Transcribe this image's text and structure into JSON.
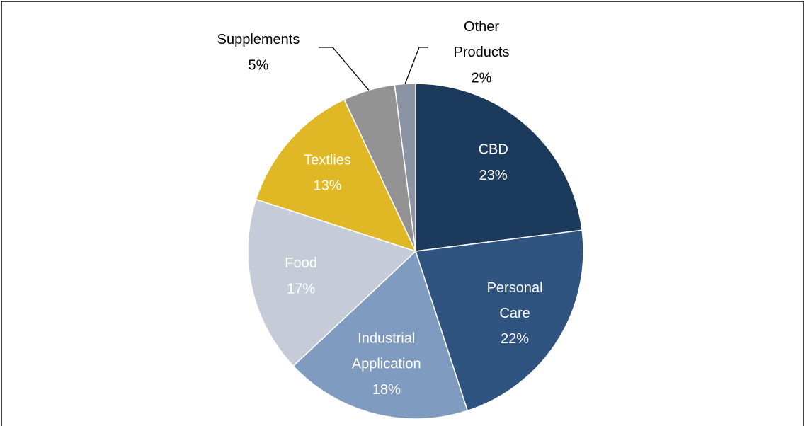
{
  "chart_data": {
    "type": "pie",
    "categories": [
      "CBD",
      "Personal Care",
      "Industrial Application",
      "Food",
      "Textlies",
      "Supplements",
      "Other Products"
    ],
    "values": [
      23,
      22,
      18,
      17,
      13,
      5,
      2
    ],
    "value_labels": [
      "23%",
      "22%",
      "18%",
      "17%",
      "13%",
      "5%",
      "2%"
    ],
    "colors": [
      "#1b3a5c",
      "#2f5480",
      "#7f9bbf",
      "#c5ccd8",
      "#e0b826",
      "#939393",
      "#8c93a3"
    ]
  }
}
